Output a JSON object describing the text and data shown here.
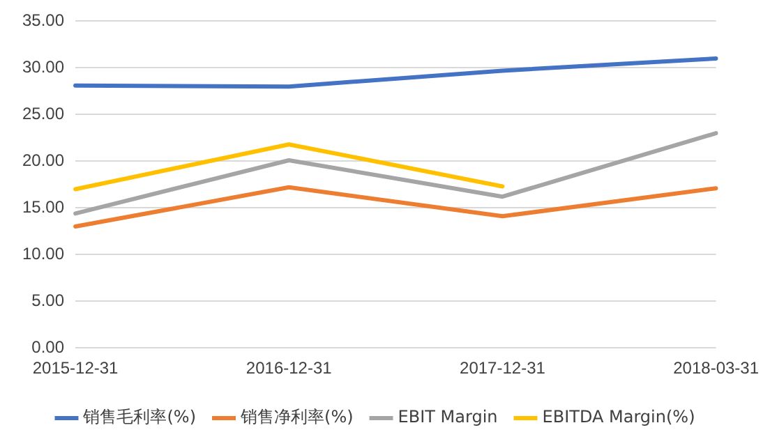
{
  "chart_data": {
    "type": "line",
    "categories": [
      "2015-12-31",
      "2016-12-31",
      "2017-12-31",
      "2018-03-31"
    ],
    "series": [
      {
        "name": "销售毛利率(%)",
        "color": "#4472c4",
        "values": [
          28.1,
          28.0,
          29.7,
          31.0
        ]
      },
      {
        "name": "销售净利率(%)",
        "color": "#ed7d31",
        "values": [
          13.0,
          17.2,
          14.1,
          17.1
        ]
      },
      {
        "name": "EBIT Margin",
        "color": "#a5a5a5",
        "values": [
          14.4,
          20.1,
          16.2,
          23.0
        ]
      },
      {
        "name": "EBITDA Margin(%)",
        "color": "#ffc000",
        "values": [
          17.0,
          21.8,
          17.3,
          null
        ]
      }
    ],
    "ylim": [
      0,
      35
    ],
    "yticks": [
      {
        "value": 0,
        "label": "0.00"
      },
      {
        "value": 5,
        "label": "5.00"
      },
      {
        "value": 10,
        "label": "10.00"
      },
      {
        "value": 15,
        "label": "15.00"
      },
      {
        "value": 20,
        "label": "20.00"
      },
      {
        "value": 25,
        "label": "25.00"
      },
      {
        "value": 30,
        "label": "30.00"
      },
      {
        "value": 35,
        "label": "35.00"
      }
    ],
    "grid": "y",
    "legend": "bottom",
    "marker": "none",
    "line_style": "solid"
  }
}
